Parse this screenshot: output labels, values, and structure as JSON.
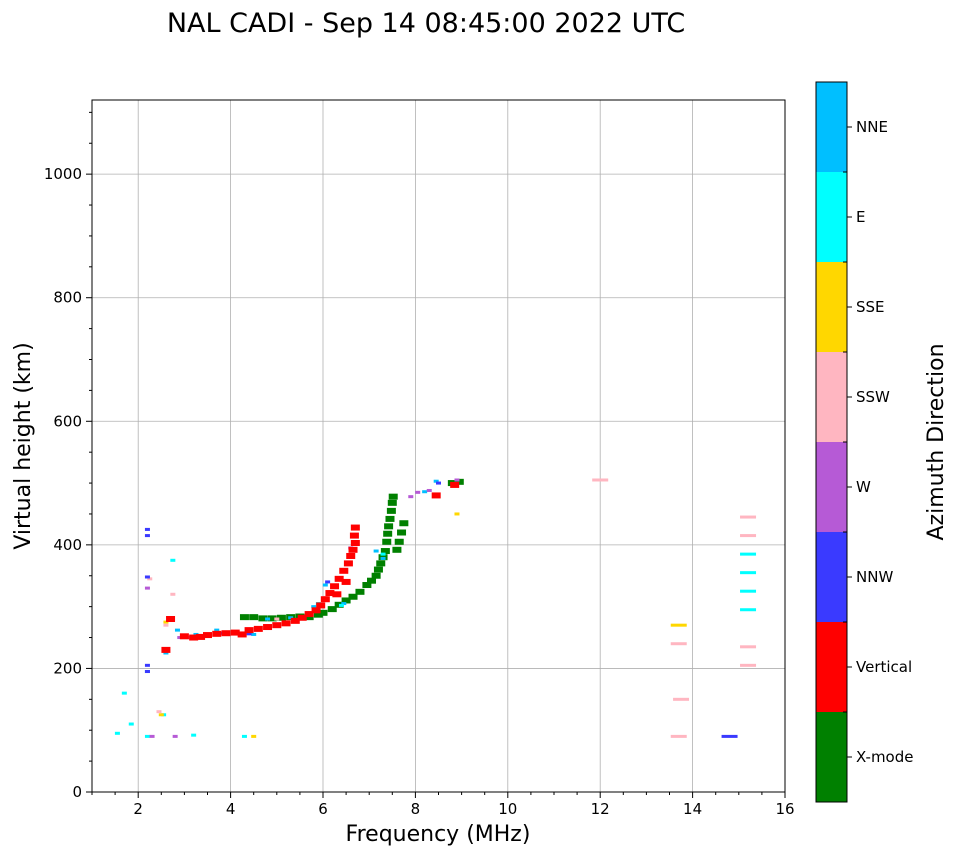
{
  "chart_data": {
    "type": "scatter",
    "title": "NAL CADI - Sep 14 08:45:00 2022 UTC",
    "xlabel": "Frequency (MHz)",
    "ylabel": "Virtual height (km)",
    "xlim": [
      1,
      16
    ],
    "ylim": [
      0,
      1120
    ],
    "xticks": [
      2,
      4,
      6,
      8,
      10,
      12,
      14,
      16
    ],
    "yticks": [
      0,
      200,
      400,
      600,
      800,
      1000
    ],
    "grid": true,
    "colorbar": {
      "label": "Azimuth Direction",
      "categories": [
        {
          "name": "X-mode",
          "color": "#008000"
        },
        {
          "name": "Vertical",
          "color": "#ff0000"
        },
        {
          "name": "NNW",
          "color": "#3a3aff"
        },
        {
          "name": "W",
          "color": "#b65ad6"
        },
        {
          "name": "SSW",
          "color": "#ffb6c1"
        },
        {
          "name": "SSE",
          "color": "#ffd700"
        },
        {
          "name": "E",
          "color": "#00ffff"
        },
        {
          "name": "NNE",
          "color": "#00bfff"
        }
      ]
    },
    "series": [
      {
        "name": "X-mode",
        "points": [
          [
            4.3,
            283
          ],
          [
            4.5,
            283
          ],
          [
            4.7,
            281
          ],
          [
            4.9,
            281
          ],
          [
            5.1,
            282
          ],
          [
            5.3,
            283
          ],
          [
            5.5,
            284
          ],
          [
            5.7,
            283
          ],
          [
            5.9,
            287
          ],
          [
            6.0,
            290
          ],
          [
            6.2,
            296
          ],
          [
            6.35,
            303
          ],
          [
            6.5,
            310
          ],
          [
            6.65,
            316
          ],
          [
            6.8,
            324
          ],
          [
            6.95,
            335
          ],
          [
            7.05,
            342
          ],
          [
            7.15,
            350
          ],
          [
            7.2,
            360
          ],
          [
            7.25,
            370
          ],
          [
            7.3,
            380
          ],
          [
            7.35,
            390
          ],
          [
            7.38,
            405
          ],
          [
            7.4,
            418
          ],
          [
            7.42,
            430
          ],
          [
            7.45,
            442
          ],
          [
            7.48,
            455
          ],
          [
            7.5,
            468
          ],
          [
            7.52,
            478
          ],
          [
            7.6,
            392
          ],
          [
            7.65,
            405
          ],
          [
            7.7,
            420
          ],
          [
            7.75,
            435
          ],
          [
            8.8,
            500
          ],
          [
            8.95,
            502
          ]
        ]
      },
      {
        "name": "Vertical",
        "points": [
          [
            2.6,
            230
          ],
          [
            2.7,
            280
          ],
          [
            3.0,
            252
          ],
          [
            3.2,
            250
          ],
          [
            3.35,
            251
          ],
          [
            3.5,
            254
          ],
          [
            3.7,
            256
          ],
          [
            3.9,
            257
          ],
          [
            4.1,
            258
          ],
          [
            4.25,
            255
          ],
          [
            4.4,
            262
          ],
          [
            4.6,
            264
          ],
          [
            4.8,
            267
          ],
          [
            5.0,
            270
          ],
          [
            5.2,
            273
          ],
          [
            5.4,
            277
          ],
          [
            5.55,
            282
          ],
          [
            5.7,
            288
          ],
          [
            5.85,
            294
          ],
          [
            5.95,
            302
          ],
          [
            6.05,
            312
          ],
          [
            6.15,
            322
          ],
          [
            6.25,
            333
          ],
          [
            6.35,
            345
          ],
          [
            6.45,
            358
          ],
          [
            6.55,
            370
          ],
          [
            6.6,
            382
          ],
          [
            6.65,
            392
          ],
          [
            6.7,
            403
          ],
          [
            6.68,
            415
          ],
          [
            6.7,
            428
          ],
          [
            6.3,
            320
          ],
          [
            6.5,
            340
          ],
          [
            8.45,
            480
          ],
          [
            8.85,
            497
          ]
        ]
      },
      {
        "name": "NNW",
        "points": [
          [
            2.2,
            415
          ],
          [
            2.2,
            425
          ],
          [
            2.2,
            348
          ],
          [
            2.2,
            195
          ],
          [
            2.2,
            205
          ],
          [
            3.8,
            257
          ],
          [
            4.4,
            256
          ],
          [
            6.1,
            340
          ],
          [
            8.5,
            500
          ],
          [
            14.8,
            90
          ]
        ]
      },
      {
        "name": "W",
        "points": [
          [
            2.2,
            330
          ],
          [
            2.3,
            90
          ],
          [
            2.8,
            90
          ],
          [
            2.9,
            250
          ],
          [
            3.1,
            250
          ],
          [
            6.2,
            320
          ],
          [
            6.6,
            395
          ],
          [
            7.9,
            478
          ],
          [
            8.05,
            485
          ],
          [
            8.3,
            488
          ],
          [
            8.9,
            505
          ]
        ]
      },
      {
        "name": "SSW",
        "points": [
          [
            2.25,
            345
          ],
          [
            2.45,
            130
          ],
          [
            2.6,
            270
          ],
          [
            2.75,
            320
          ],
          [
            5.0,
            280
          ],
          [
            6.05,
            315
          ],
          [
            12.0,
            505
          ],
          [
            13.7,
            90
          ],
          [
            13.75,
            150
          ],
          [
            13.7,
            240
          ],
          [
            15.2,
            445
          ],
          [
            15.2,
            415
          ],
          [
            15.2,
            235
          ],
          [
            15.2,
            205
          ]
        ]
      },
      {
        "name": "SSE",
        "points": [
          [
            2.5,
            125
          ],
          [
            2.6,
            275
          ],
          [
            4.5,
            90
          ],
          [
            8.9,
            450
          ],
          [
            13.7,
            270
          ]
        ]
      },
      {
        "name": "E",
        "points": [
          [
            1.55,
            95
          ],
          [
            1.7,
            160
          ],
          [
            1.85,
            110
          ],
          [
            2.2,
            90
          ],
          [
            2.55,
            125
          ],
          [
            2.75,
            375
          ],
          [
            3.2,
            92
          ],
          [
            4.3,
            90
          ],
          [
            5.9,
            305
          ],
          [
            6.4,
            302
          ],
          [
            7.3,
            385
          ],
          [
            15.2,
            385
          ],
          [
            15.2,
            355
          ],
          [
            15.2,
            325
          ],
          [
            15.2,
            295
          ]
        ]
      },
      {
        "name": "NNE",
        "points": [
          [
            2.2,
            195
          ],
          [
            2.6,
            225
          ],
          [
            2.85,
            262
          ],
          [
            3.25,
            255
          ],
          [
            3.7,
            262
          ],
          [
            4.5,
            255
          ],
          [
            4.8,
            280
          ],
          [
            5.3,
            282
          ],
          [
            5.8,
            300
          ],
          [
            6.05,
            335
          ],
          [
            6.45,
            305
          ],
          [
            7.15,
            390
          ],
          [
            7.3,
            378
          ],
          [
            8.2,
            486
          ],
          [
            8.45,
            503
          ]
        ]
      }
    ]
  }
}
